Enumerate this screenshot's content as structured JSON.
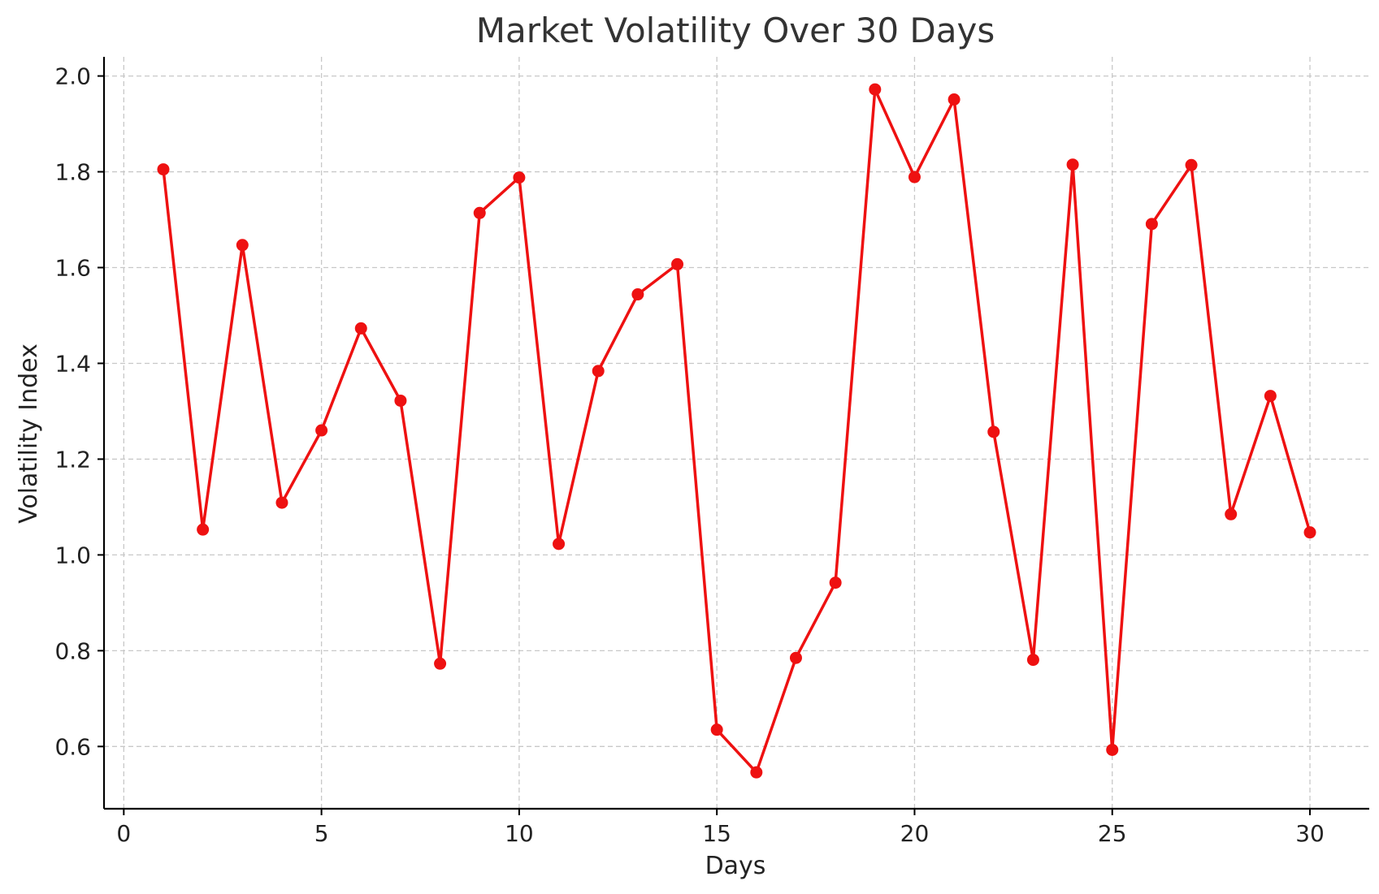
{
  "chart_data": {
    "type": "line",
    "title": "Market Volatility Over 30 Days",
    "xlabel": "Days",
    "ylabel": "Volatility Index",
    "xlim": [
      -0.5,
      31.5
    ],
    "ylim": [
      0.47,
      2.04
    ],
    "xticks": [
      0,
      5,
      10,
      15,
      20,
      25,
      30
    ],
    "yticks": [
      0.6,
      0.8,
      1.0,
      1.2,
      1.4,
      1.6,
      1.8,
      2.0
    ],
    "xtick_labels": [
      "0",
      "5",
      "10",
      "15",
      "20",
      "25",
      "30"
    ],
    "ytick_labels": [
      "0.6",
      "0.8",
      "1.0",
      "1.2",
      "1.4",
      "1.6",
      "1.8",
      "2.0"
    ],
    "grid": true,
    "color": "#ee1111",
    "series": [
      {
        "x": [
          1,
          2,
          3,
          4,
          5,
          6,
          7,
          8,
          9,
          10,
          11,
          12,
          13,
          14,
          15,
          16,
          17,
          18,
          19,
          20,
          21,
          22,
          23,
          24,
          25,
          26,
          27,
          28,
          29,
          30
        ],
        "values": [
          1.805,
          1.053,
          1.647,
          1.109,
          1.26,
          1.473,
          1.322,
          0.773,
          1.714,
          1.788,
          1.023,
          1.384,
          1.544,
          1.607,
          0.635,
          0.546,
          0.785,
          0.942,
          1.972,
          1.789,
          1.951,
          1.257,
          0.781,
          1.815,
          0.593,
          1.691,
          1.814,
          1.085,
          1.332,
          1.047
        ]
      }
    ]
  }
}
